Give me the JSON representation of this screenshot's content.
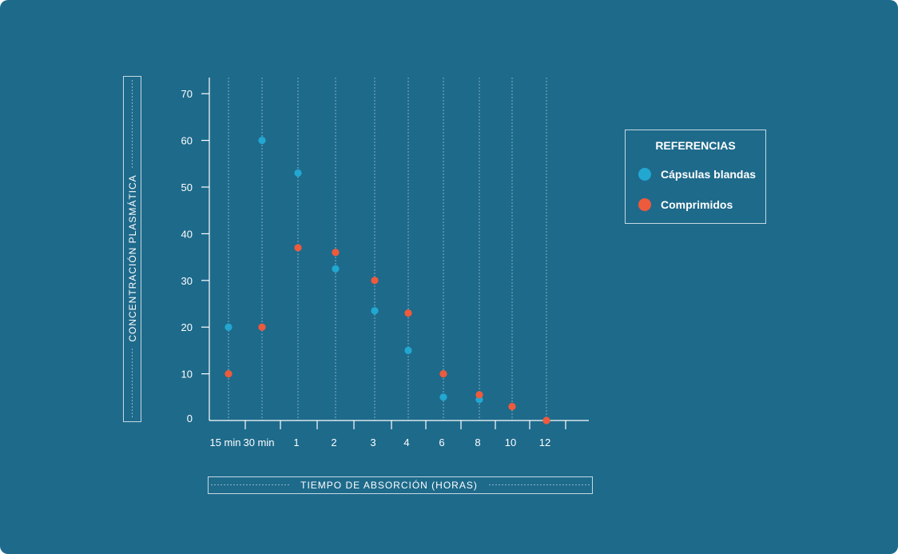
{
  "colors": {
    "background": "#1e6a8b",
    "series_capsulas": "#22a7d1",
    "series_comprimidos": "#ee5a3c"
  },
  "legend": {
    "title": "REFERENCIAS",
    "items": [
      "Cápsulas blandas",
      "Comprimidos"
    ]
  },
  "chart_data": {
    "type": "scatter",
    "title": "",
    "xlabel": "TIEMPO DE ABSORCIÓN (HORAS)",
    "ylabel": "CONCENTRACIÓN PLASMÁTICA",
    "categories": [
      "15 min",
      "30 min",
      "1",
      "2",
      "3",
      "4",
      "6",
      "8",
      "10",
      "12"
    ],
    "yticks": [
      "0",
      "10",
      "20",
      "30",
      "40",
      "50",
      "60",
      "70"
    ],
    "ylim": [
      0,
      70
    ],
    "grid": "vertical dashed",
    "legend_position": "right",
    "series": [
      {
        "name": "Cápsulas blandas",
        "color": "#22a7d1",
        "points": [
          {
            "x": "15 min",
            "y": 20
          },
          {
            "x": "30 min",
            "y": 60
          },
          {
            "x": "1",
            "y": 53
          },
          {
            "x": "2",
            "y": 32.5
          },
          {
            "x": "3",
            "y": 23.5
          },
          {
            "x": "4",
            "y": 15
          },
          {
            "x": "6",
            "y": 5
          },
          {
            "x": "8",
            "y": 4.5
          }
        ]
      },
      {
        "name": "Comprimidos",
        "color": "#ee5a3c",
        "points": [
          {
            "x": "15 min",
            "y": 10
          },
          {
            "x": "30 min",
            "y": 20
          },
          {
            "x": "1",
            "y": 37
          },
          {
            "x": "2",
            "y": 36
          },
          {
            "x": "3",
            "y": 30
          },
          {
            "x": "4",
            "y": 23
          },
          {
            "x": "6",
            "y": 10
          },
          {
            "x": "8",
            "y": 5.5
          },
          {
            "x": "10",
            "y": 3
          },
          {
            "x": "12",
            "y": 0
          }
        ]
      }
    ]
  }
}
